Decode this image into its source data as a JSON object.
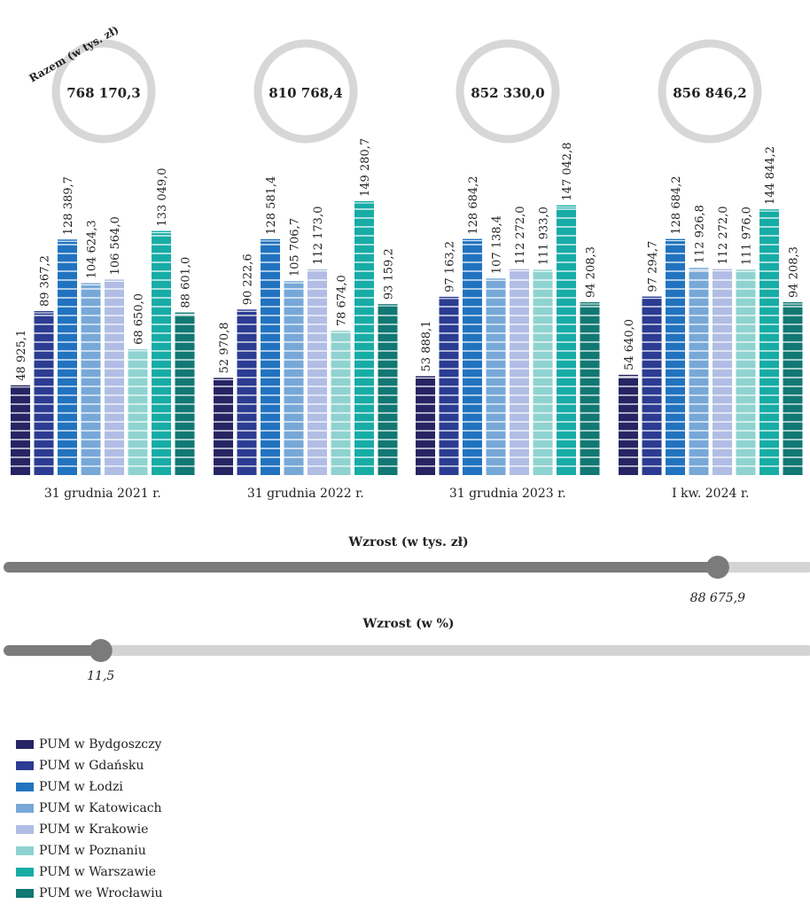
{
  "chart_data": {
    "type": "bar",
    "total_label": "Razem (w tys. zł)",
    "categories": [
      "31 grudnia 2021 r.",
      "31 grudnia 2022 r.",
      "31 grudnia 2023 r.",
      "I kw. 2024 r."
    ],
    "totals": [
      "768 170,3",
      "810 768,4",
      "852 330,0",
      "856 846,2"
    ],
    "series": [
      {
        "name": "PUM w Bydgoszczy",
        "color": "#262463",
        "values": [
          48925.1,
          52970.8,
          53888.1,
          54640.0
        ],
        "labels": [
          "48 925,1",
          "52 970,8",
          "53 888,1",
          "54 640,0"
        ]
      },
      {
        "name": "PUM w Gdańsku",
        "color": "#2b3c92",
        "values": [
          89367.2,
          90222.6,
          97163.2,
          97294.7
        ],
        "labels": [
          "89 367,2",
          "90 222,6",
          "97 163,2",
          "97 294,7"
        ]
      },
      {
        "name": "PUM w Łodzi",
        "color": "#2173bf",
        "values": [
          128389.7,
          128581.4,
          128684.2,
          128684.2
        ],
        "labels": [
          "128 389,7",
          "128 581,4",
          "128 684,2",
          "128 684,2"
        ]
      },
      {
        "name": "PUM w Katowicach",
        "color": "#77a8d8",
        "values": [
          104624.3,
          105706.7,
          107138.4,
          112926.8
        ],
        "labels": [
          "104 624,3",
          "105 706,7",
          "107 138,4",
          "112 926,8"
        ]
      },
      {
        "name": "PUM w Krakowie",
        "color": "#b1bde4",
        "values": [
          106564.0,
          112173.0,
          112272.0,
          112272.0
        ],
        "labels": [
          "106 564,0",
          "112 173,0",
          "112 272,0",
          "112 272,0"
        ]
      },
      {
        "name": "PUM w Poznaniu",
        "color": "#8fd3d0",
        "values": [
          68650.0,
          78674.0,
          111933.0,
          111976.0
        ],
        "labels": [
          "68 650,0",
          "78 674,0",
          "111 933,0",
          "111 976,0"
        ]
      },
      {
        "name": "PUM w Warszawie",
        "color": "#17aca6",
        "values": [
          133049.0,
          149280.7,
          147042.8,
          144844.2
        ],
        "labels": [
          "133 049,0",
          "149 280,7",
          "147 042,8",
          "144 844,2"
        ]
      },
      {
        "name": "PUM we Wrocławiu",
        "color": "#127873",
        "values": [
          88601.0,
          93159.2,
          94208.3,
          94208.3
        ],
        "labels": [
          "88 601,0",
          "93 159,2",
          "94 208,3",
          "94 208,3"
        ]
      }
    ],
    "ylim": [
      0,
      160000
    ],
    "growth_abs": {
      "title": "Wzrost (w tys. zł)",
      "value": 88675.9,
      "label": "88 675,9",
      "max": 100000
    },
    "growth_pct": {
      "title": "Wzrost (w %)",
      "value": 11.5,
      "label": "11,5",
      "max": 100
    },
    "legend": "bottom-left"
  }
}
